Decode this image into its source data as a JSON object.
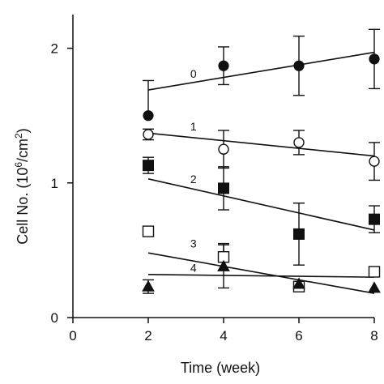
{
  "chart_data": {
    "type": "scatter",
    "title": "",
    "xlabel": "Time (week)",
    "ylabel_main": "Cell No. (10",
    "ylabel_sup1": "6",
    "ylabel_mid": "/cm",
    "ylabel_sup2": "2",
    "ylabel_end": ")",
    "xlim": [
      0,
      8
    ],
    "ylim": [
      0,
      2.25
    ],
    "xticks": [
      0,
      2,
      4,
      6,
      8
    ],
    "xtick_labels": [
      "0",
      "2",
      "4",
      "6",
      "8"
    ],
    "yticks": [
      0,
      1,
      2
    ],
    "ytick_labels": [
      "0",
      "1",
      "2"
    ],
    "grid": false,
    "legend": "none",
    "series": [
      {
        "label": "0",
        "marker": "filled-circle",
        "points": [
          {
            "x": 2,
            "y": 1.5,
            "err": 0
          },
          {
            "x": 4,
            "y": 1.87,
            "err": 0.14
          },
          {
            "x": 6,
            "y": 1.87,
            "err": 0.22
          },
          {
            "x": 8,
            "y": 1.92,
            "err": 0.22
          }
        ],
        "fit": {
          "x0": 2,
          "y0": 1.69,
          "x1": 8,
          "y1": 1.97
        },
        "errorbars": [
          {
            "x": 2,
            "lo": 1.5,
            "hi": 1.76
          }
        ],
        "label_pos": {
          "x": 3.2,
          "y": 1.78
        }
      },
      {
        "label": "1",
        "marker": "open-circle",
        "points": [
          {
            "x": 2,
            "y": 1.36,
            "err": 0.04
          },
          {
            "x": 4,
            "y": 1.25,
            "err": 0.14
          },
          {
            "x": 6,
            "y": 1.3,
            "err": 0.09
          },
          {
            "x": 8,
            "y": 1.16,
            "err": 0.14
          }
        ],
        "fit": {
          "x0": 2,
          "y0": 1.37,
          "x1": 8,
          "y1": 1.2
        },
        "label_pos": {
          "x": 3.2,
          "y": 1.39
        }
      },
      {
        "label": "2",
        "marker": "filled-square",
        "points": [
          {
            "x": 2,
            "y": 1.13,
            "err": 0.06
          },
          {
            "x": 4,
            "y": 0.96,
            "err": 0.16
          },
          {
            "x": 6,
            "y": 0.62,
            "err": 0.23
          },
          {
            "x": 8,
            "y": 0.73,
            "err": 0.1
          }
        ],
        "fit": {
          "x0": 2,
          "y0": 1.03,
          "x1": 8,
          "y1": 0.65
        },
        "label_pos": {
          "x": 3.2,
          "y": 1.0
        }
      },
      {
        "label": "3",
        "marker": "open-square",
        "points": [
          {
            "x": 2,
            "y": 0.64,
            "err": 0
          },
          {
            "x": 4,
            "y": 0.45,
            "err": 0.1
          },
          {
            "x": 6,
            "y": 0.23,
            "err": 0
          },
          {
            "x": 8,
            "y": 0.34,
            "err": 0
          }
        ],
        "fit": {
          "x0": 2,
          "y0": 0.48,
          "x1": 8,
          "y1": 0.18
        },
        "label_pos": {
          "x": 3.2,
          "y": 0.52
        }
      },
      {
        "label": "4",
        "marker": "filled-triangle",
        "points": [
          {
            "x": 2,
            "y": 0.23,
            "err": 0.05
          },
          {
            "x": 4,
            "y": 0.38,
            "err": 0.16
          },
          {
            "x": 6,
            "y": 0.25,
            "err": 0
          },
          {
            "x": 8,
            "y": 0.22,
            "err": 0
          }
        ],
        "fit": {
          "x0": 2,
          "y0": 0.32,
          "x1": 8,
          "y1": 0.3
        },
        "label_pos": {
          "x": 3.2,
          "y": 0.34
        }
      }
    ]
  }
}
